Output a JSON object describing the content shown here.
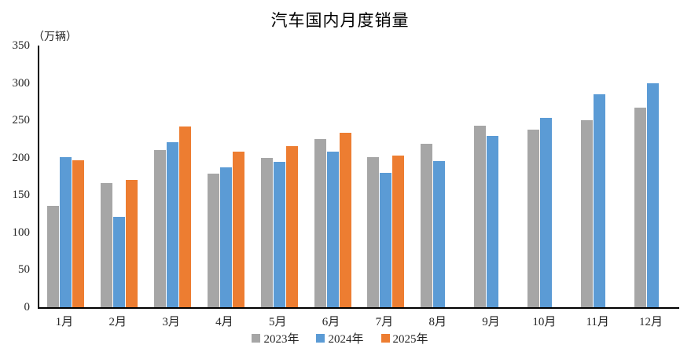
{
  "chart_data": {
    "type": "bar",
    "title": "汽车国内月度销量",
    "unit_label": "（万辆）",
    "categories": [
      "1月",
      "2月",
      "3月",
      "4月",
      "5月",
      "6月",
      "7月",
      "8月",
      "9月",
      "10月",
      "11月",
      "12月"
    ],
    "series": [
      {
        "name": "2023年",
        "color": "#A6A6A6",
        "values": [
          136,
          166,
          210,
          179,
          200,
          225,
          201,
          219,
          243,
          238,
          250,
          267
        ]
      },
      {
        "name": "2024年",
        "color": "#5B9BD5",
        "values": [
          201,
          121,
          221,
          187,
          194,
          208,
          180,
          196,
          229,
          253,
          285,
          300
        ]
      },
      {
        "name": "2025年",
        "color": "#ED7D31",
        "values": [
          197,
          170,
          242,
          208,
          215,
          233,
          203,
          null,
          null,
          null,
          null,
          null
        ]
      }
    ],
    "ylim": [
      0,
      350
    ],
    "ytick_step": 50,
    "grid": false,
    "legend_position": "bottom",
    "axis_color": "#000000",
    "text_color": "#262626"
  }
}
